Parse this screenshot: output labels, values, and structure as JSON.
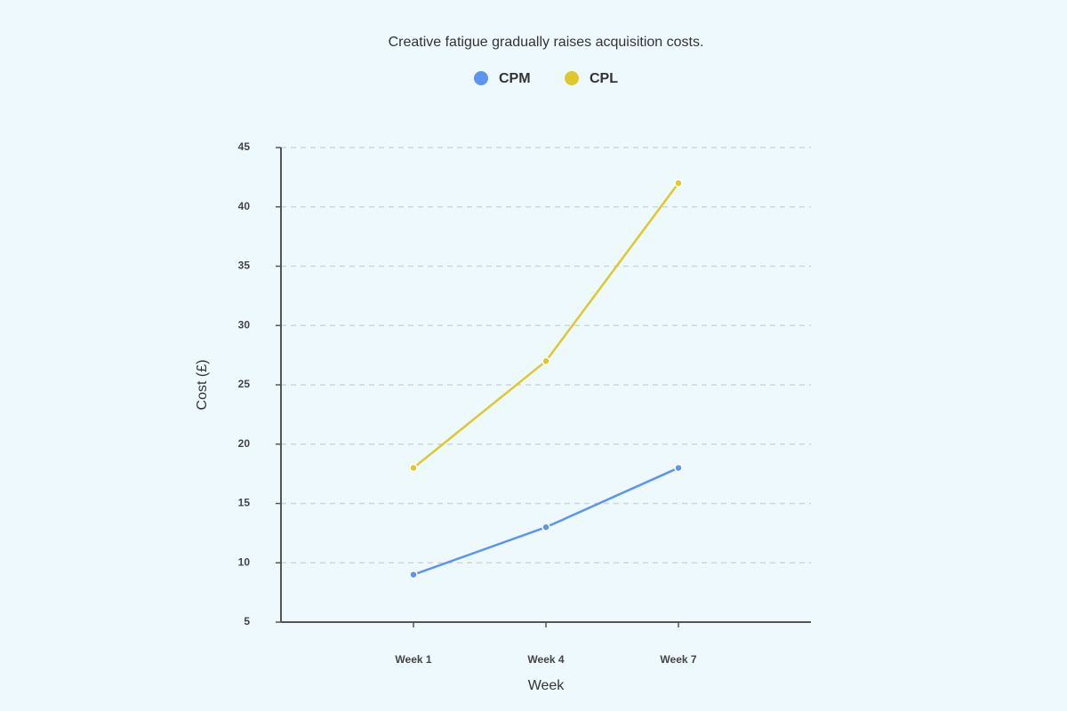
{
  "chart_data": {
    "type": "line",
    "title": "Creative fatigue gradually raises acquisition costs.",
    "x_label": "Week",
    "y_label": "Cost (£)",
    "categories": [
      "Week 1",
      "Week 4",
      "Week 7"
    ],
    "series": [
      {
        "name": "CPM",
        "color": "#5b95ef",
        "values": [
          9,
          13,
          18
        ]
      },
      {
        "name": "CPL",
        "color": "#dfc82b",
        "values": [
          18,
          27,
          42
        ]
      }
    ],
    "ylim": [
      5,
      45
    ],
    "yticks": [
      5,
      10,
      15,
      20,
      25,
      30,
      35,
      40,
      45
    ],
    "grid": true,
    "legend": "top"
  }
}
